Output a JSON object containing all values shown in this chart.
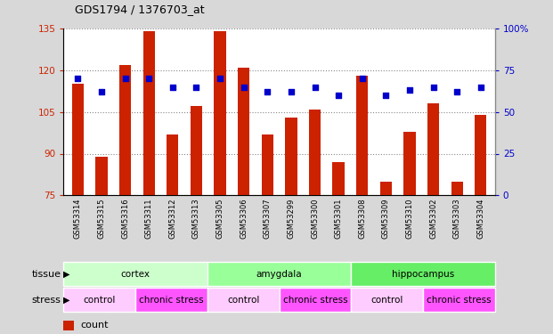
{
  "title": "GDS1794 / 1376703_at",
  "samples": [
    "GSM53314",
    "GSM53315",
    "GSM53316",
    "GSM53311",
    "GSM53312",
    "GSM53313",
    "GSM53305",
    "GSM53306",
    "GSM53307",
    "GSM53299",
    "GSM53300",
    "GSM53301",
    "GSM53308",
    "GSM53309",
    "GSM53310",
    "GSM53302",
    "GSM53303",
    "GSM53304"
  ],
  "bar_values": [
    115,
    89,
    122,
    134,
    97,
    107,
    134,
    121,
    97,
    103,
    106,
    87,
    118,
    80,
    98,
    108,
    80,
    104
  ],
  "dot_values": [
    70,
    62,
    70,
    70,
    65,
    65,
    70,
    65,
    62,
    62,
    65,
    60,
    70,
    60,
    63,
    65,
    62,
    65
  ],
  "ylim_left": [
    75,
    135
  ],
  "ylim_right": [
    0,
    100
  ],
  "yticks_left": [
    75,
    90,
    105,
    120,
    135
  ],
  "yticks_right": [
    0,
    25,
    50,
    75,
    100
  ],
  "tissue_groups": [
    {
      "label": "cortex",
      "start": 0,
      "end": 6,
      "color": "#ccffcc"
    },
    {
      "label": "amygdala",
      "start": 6,
      "end": 12,
      "color": "#99ff99"
    },
    {
      "label": "hippocampus",
      "start": 12,
      "end": 18,
      "color": "#66ee66"
    }
  ],
  "stress_groups": [
    {
      "label": "control",
      "start": 0,
      "end": 3,
      "color": "#ffccff"
    },
    {
      "label": "chronic stress",
      "start": 3,
      "end": 6,
      "color": "#ff55ff"
    },
    {
      "label": "control",
      "start": 6,
      "end": 9,
      "color": "#ffccff"
    },
    {
      "label": "chronic stress",
      "start": 9,
      "end": 12,
      "color": "#ff55ff"
    },
    {
      "label": "control",
      "start": 12,
      "end": 15,
      "color": "#ffccff"
    },
    {
      "label": "chronic stress",
      "start": 15,
      "end": 18,
      "color": "#ff55ff"
    }
  ],
  "bar_color": "#cc2200",
  "dot_color": "#0000cc",
  "grid_color": "#888888",
  "bg_color": "#d8d8d8",
  "plot_bg": "#ffffff",
  "xtick_bg": "#cccccc",
  "label_color_left": "#cc2200",
  "label_color_right": "#0000cc",
  "legend_count_color": "#cc2200",
  "legend_dot_color": "#0000cc",
  "title_fontsize": 9,
  "bar_width": 0.5
}
